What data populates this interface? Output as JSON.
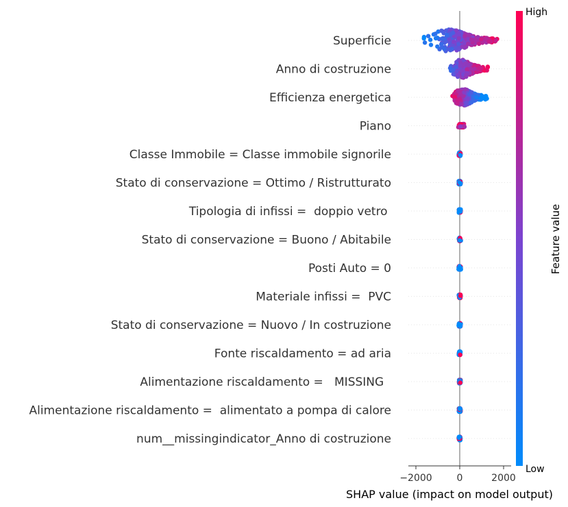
{
  "chart_data": {
    "type": "scatter",
    "subtype": "shap-beeswarm",
    "xlabel": "SHAP value (impact on model output)",
    "xlim": [
      -2100,
      2300
    ],
    "xticks": [
      -2000,
      0,
      2000
    ],
    "xtick_labels": [
      "−2000",
      "0",
      "2000"
    ],
    "colorbar": {
      "title": "Feature value",
      "high_label": "High",
      "low_label": "Low",
      "low_color": "#008bfb",
      "high_color": "#ff0052",
      "mid_color": "#7b44d0"
    },
    "features": [
      {
        "name": "Superficie",
        "min": -1900,
        "max": 2100,
        "spread": 1.0
      },
      {
        "name": "Anno di costruzione",
        "min": -700,
        "max": 1450,
        "spread": 0.8
      },
      {
        "name": "Efficienza energetica",
        "min": -500,
        "max": 1350,
        "spread": 0.7
      },
      {
        "name": "Piano",
        "min": -100,
        "max": 250,
        "spread": 0.25
      },
      {
        "name": "Classe Immobile = Classe immobile signorile",
        "min": -60,
        "max": 60,
        "spread": 0.15
      },
      {
        "name": "Stato di conservazione = Ottimo / Ristrutturato",
        "min": -60,
        "max": 60,
        "spread": 0.15
      },
      {
        "name": "Tipologia di infissi =  doppio vetro ",
        "min": -60,
        "max": 60,
        "spread": 0.15
      },
      {
        "name": "Stato di conservazione = Buono / Abitabile",
        "min": -60,
        "max": 60,
        "spread": 0.15
      },
      {
        "name": "Posti Auto = 0",
        "min": -60,
        "max": 60,
        "spread": 0.15
      },
      {
        "name": "Materiale infissi =  PVC",
        "min": -60,
        "max": 60,
        "spread": 0.15
      },
      {
        "name": "Stato di conservazione = Nuovo / In costruzione",
        "min": -60,
        "max": 60,
        "spread": 0.15
      },
      {
        "name": "Fonte riscaldamento = ad aria",
        "min": -60,
        "max": 60,
        "spread": 0.15
      },
      {
        "name": "Alimentazione riscaldamento =   MISSING  ",
        "min": -60,
        "max": 60,
        "spread": 0.15
      },
      {
        "name": "Alimentazione riscaldamento =  alimentato a pompa di calore",
        "min": -60,
        "max": 60,
        "spread": 0.15
      },
      {
        "name": "num__missingindicator_Anno di costruzione",
        "min": -60,
        "max": 60,
        "spread": 0.15
      }
    ]
  }
}
